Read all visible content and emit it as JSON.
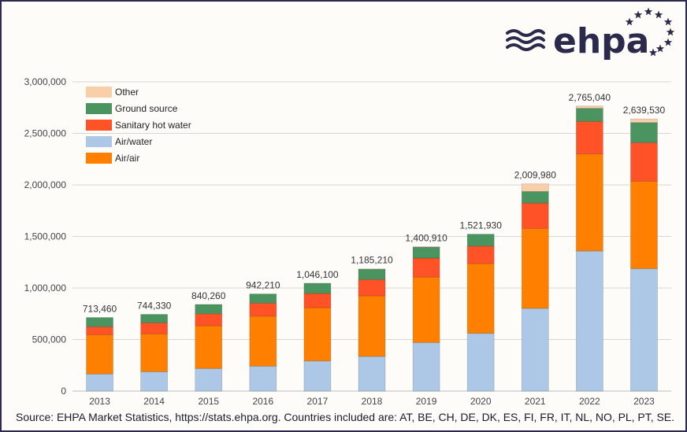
{
  "logo": {
    "text": "ehpa",
    "color": "#2b2a4c"
  },
  "source": "Source: EHPA Market Statistics, https://stats.ehpa.org. Countries included are: AT, BE, CH, DE, DK, ES, FI, FR, IT, NL, NO, PL, PT, SE.",
  "chart_data": {
    "type": "bar",
    "stacked": true,
    "title": "",
    "xlabel": "",
    "ylabel": "",
    "ylim": [
      0,
      3000000
    ],
    "yticks": [
      "0",
      "500,000",
      "1,000,000",
      "1,500,000",
      "2,000,000",
      "2,500,000",
      "3,000,000"
    ],
    "grid": true,
    "legend_position": "top-left",
    "categories": [
      "2013",
      "2014",
      "2015",
      "2016",
      "2017",
      "2018",
      "2019",
      "2020",
      "2021",
      "2022",
      "2023"
    ],
    "totals": [
      713460,
      744330,
      840260,
      942210,
      1046100,
      1185210,
      1400910,
      1521930,
      2009980,
      2765040,
      2639530
    ],
    "total_labels": [
      "713,460",
      "744,330",
      "840,260",
      "942,210",
      "1,046,100",
      "1,185,210",
      "1,400,910",
      "1,521,930",
      "2,009,980",
      "2,765,040",
      "2,639,530"
    ],
    "series": [
      {
        "name": "Air/water",
        "color": "#adc8e6",
        "values": [
          166000,
          188000,
          219000,
          242000,
          292000,
          336000,
          471000,
          560000,
          802000,
          1359000,
          1188000
        ]
      },
      {
        "name": "Air/air",
        "color": "#ff8000",
        "values": [
          381000,
          367000,
          415000,
          485000,
          517000,
          588000,
          634000,
          677000,
          776000,
          941000,
          848000
        ]
      },
      {
        "name": "Sanitary hot water",
        "color": "#ff5226",
        "values": [
          77000,
          107000,
          116000,
          126000,
          138000,
          158000,
          185000,
          170000,
          246000,
          316000,
          374000
        ]
      },
      {
        "name": "Ground source",
        "color": "#4a9460",
        "values": [
          89460,
          82330,
          90260,
          89210,
          99100,
          100210,
          106000,
          114930,
          112000,
          127000,
          195000
        ]
      },
      {
        "name": "Other",
        "color": "#f9cfaa",
        "values": [
          0,
          0,
          0,
          0,
          0,
          3000,
          4910,
          0,
          73980,
          22040,
          34530
        ]
      }
    ],
    "legend_order": [
      "Other",
      "Ground source",
      "Sanitary hot water",
      "Air/water",
      "Air/air"
    ]
  }
}
